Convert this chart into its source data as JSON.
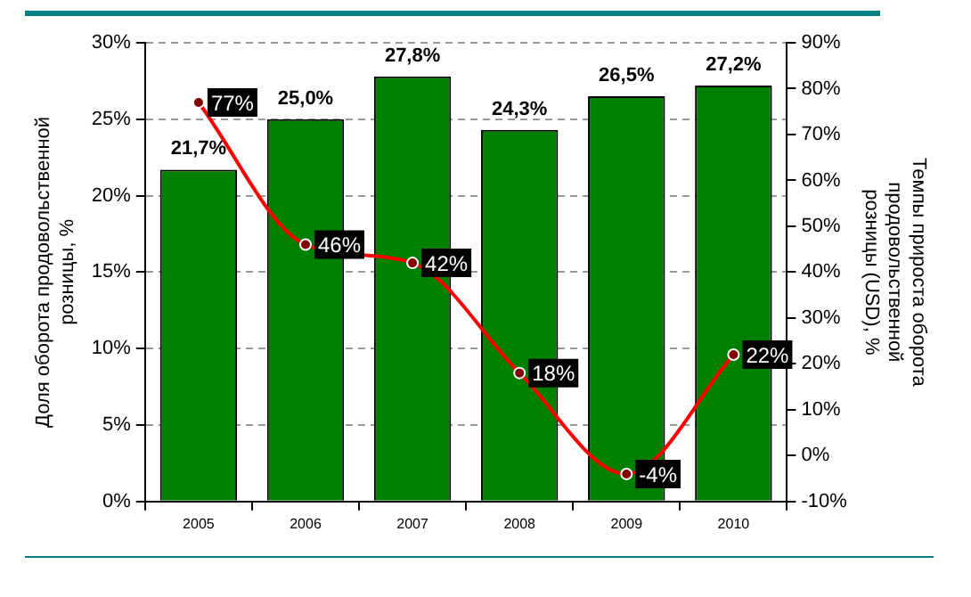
{
  "chart_data": {
    "type": "bar",
    "categories": [
      "2005",
      "2006",
      "2007",
      "2008",
      "2009",
      "2010"
    ],
    "ylabel": "Доля оборота продовольственной розницы, %",
    "y2label": "Темпы прироста оборота продовольственной розницы (USD), %",
    "ylim": [
      0,
      30
    ],
    "yticks": [
      {
        "value": 0,
        "label": "0%"
      },
      {
        "value": 5,
        "label": "5%"
      },
      {
        "value": 10,
        "label": "10%"
      },
      {
        "value": 15,
        "label": "15%"
      },
      {
        "value": 20,
        "label": "20%"
      },
      {
        "value": 25,
        "label": "25%"
      },
      {
        "value": 30,
        "label": "30%"
      }
    ],
    "y2lim": [
      -10,
      90
    ],
    "y2ticks": [
      {
        "value": -10,
        "label": "-10%"
      },
      {
        "value": 0,
        "label": "0%"
      },
      {
        "value": 10,
        "label": "10%"
      },
      {
        "value": 20,
        "label": "20%"
      },
      {
        "value": 30,
        "label": "30%"
      },
      {
        "value": 40,
        "label": "40%"
      },
      {
        "value": 50,
        "label": "50%"
      },
      {
        "value": 60,
        "label": "60%"
      },
      {
        "value": 70,
        "label": "70%"
      },
      {
        "value": 80,
        "label": "80%"
      },
      {
        "value": 90,
        "label": "90%"
      }
    ],
    "grid": "y",
    "legend": false,
    "series": [
      {
        "color": "#008000",
        "values": [
          21.7,
          25.0,
          27.8,
          24.3,
          26.5,
          27.2
        ],
        "value_labels": [
          "21,7%",
          "25,0%",
          "27,8%",
          "24,3%",
          "26,5%",
          "27,2%"
        ]
      },
      {
        "type": "line",
        "axis": "y2",
        "color": "#ff0000",
        "marker": "circle",
        "values": [
          77,
          46,
          42,
          18,
          -4,
          22
        ],
        "value_labels": [
          "77%",
          "46%",
          "42%",
          "18%",
          "-4%",
          "22%"
        ]
      }
    ]
  }
}
